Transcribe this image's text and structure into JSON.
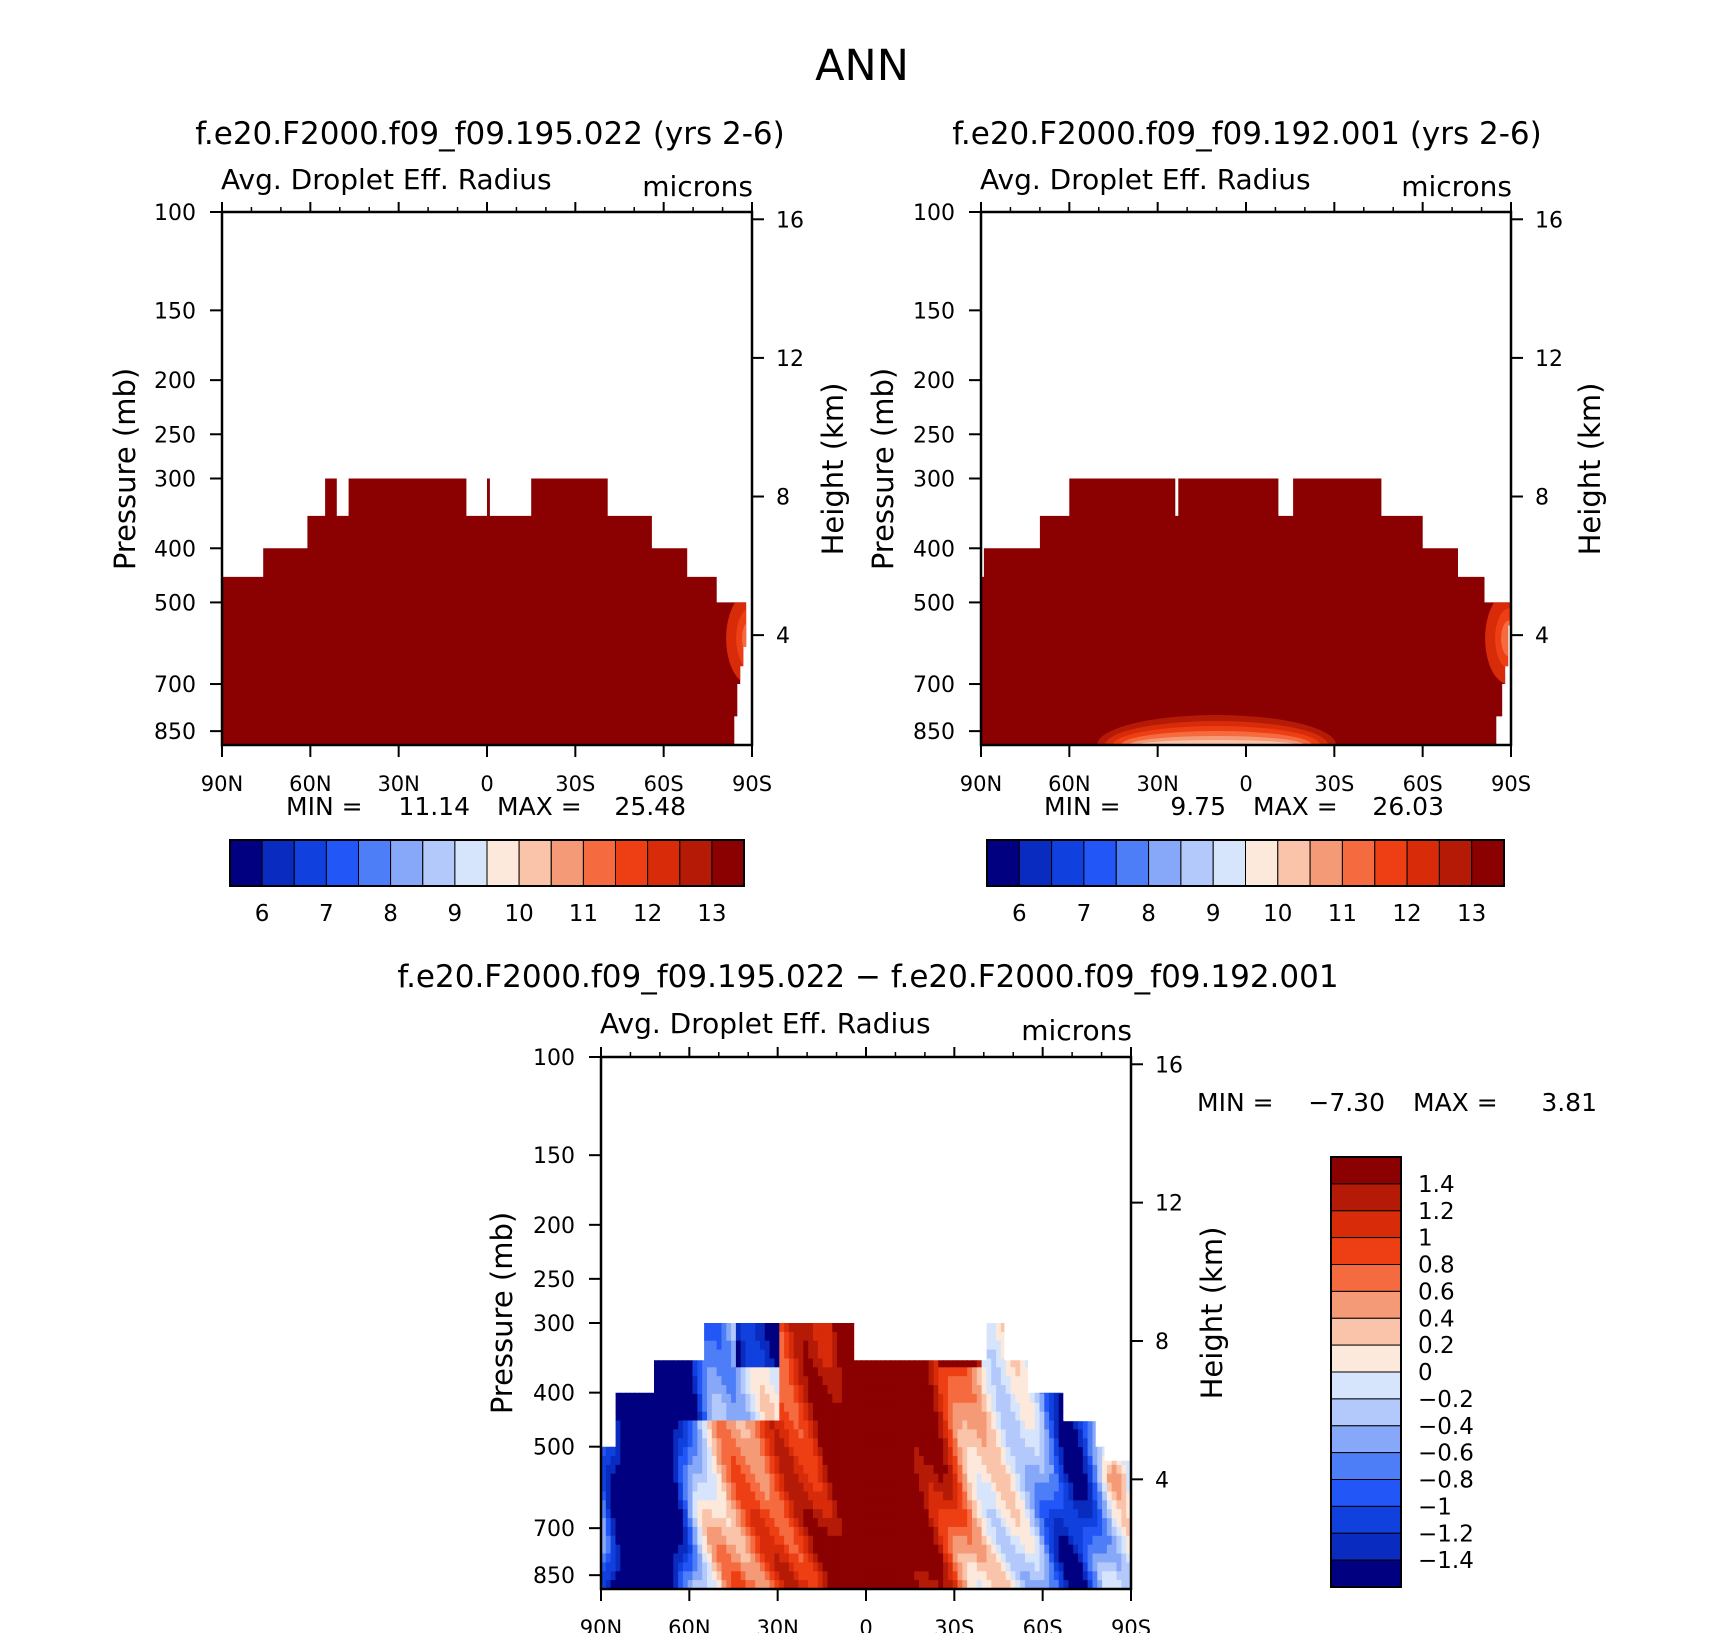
{
  "title": "ANN",
  "colors": {
    "fill_levels": [
      "#000080",
      "#0a2bbf",
      "#1040dd",
      "#2356f6",
      "#4d7ef7",
      "#87a8f8",
      "#b4c9fb",
      "#d6e5fb",
      "#fde9dc",
      "#f9c4aa",
      "#f59a76",
      "#f56b3f",
      "#ee3f14",
      "#d82b0a",
      "#b51a06",
      "#8b0000"
    ],
    "no_data": "#ffffff"
  },
  "chart_data": [
    {
      "id": "panel-1",
      "type": "heatmap",
      "subtitle": "f.e20.F2000.f09_f09.195.022 (yrs 2-6)",
      "title": "Avg. Droplet Eff. Radius",
      "units": "microns",
      "ylabel": "Pressure (mb)",
      "ylabel_right": "Height (km)",
      "xlim": [
        90,
        -90
      ],
      "ylim": [
        100,
        900
      ],
      "x_ticks": [
        {
          "v": 90,
          "l": "90N"
        },
        {
          "v": 60,
          "l": "60N"
        },
        {
          "v": 30,
          "l": "30N"
        },
        {
          "v": 0,
          "l": "0"
        },
        {
          "v": -30,
          "l": "30S"
        },
        {
          "v": -60,
          "l": "60S"
        },
        {
          "v": -90,
          "l": "90S"
        }
      ],
      "y_ticks": [
        100,
        150,
        200,
        250,
        300,
        400,
        500,
        700,
        850
      ],
      "height_ticks": [
        4,
        8,
        12,
        16
      ],
      "min_label": "MIN =",
      "min_value": "11.14",
      "max_label": "MAX =",
      "max_value": "25.48",
      "colorbar": {
        "levels": [
          5.75,
          6,
          6.25,
          6.5,
          6.75,
          7,
          7.25,
          7.5,
          7.75,
          8,
          8.25,
          8.5,
          8.75,
          9,
          9.25,
          9.5,
          9.75,
          10,
          10.25,
          10.5,
          10.75,
          11,
          11.25,
          11.5,
          11.75,
          12,
          12.25,
          12.5,
          12.75,
          13,
          13.25,
          13.5,
          13.75
        ],
        "labels": [
          "6",
          "7",
          "8",
          "9",
          "10",
          "11",
          "12",
          "13"
        ],
        "orientation": "horizontal"
      },
      "top_profile": [
        [
          90,
          450
        ],
        [
          76,
          450
        ],
        [
          76,
          400
        ],
        [
          61,
          400
        ],
        [
          61,
          350
        ],
        [
          55,
          350
        ],
        [
          55,
          300
        ],
        [
          51,
          300
        ],
        [
          51,
          350
        ],
        [
          47,
          350
        ],
        [
          47,
          300
        ],
        [
          7,
          300
        ],
        [
          7,
          350
        ],
        [
          0,
          350
        ],
        [
          0,
          300
        ],
        [
          -1,
          300
        ],
        [
          -1,
          350
        ],
        [
          -15,
          350
        ],
        [
          -15,
          300
        ],
        [
          -41,
          300
        ],
        [
          -41,
          350
        ],
        [
          -56,
          350
        ],
        [
          -56,
          400
        ],
        [
          -68,
          400
        ],
        [
          -68,
          450
        ],
        [
          -78,
          450
        ],
        [
          -78,
          500
        ],
        [
          -88,
          500
        ],
        [
          -88,
          600
        ],
        [
          -87,
          600
        ],
        [
          -87,
          650
        ],
        [
          -86,
          650
        ],
        [
          -86,
          700
        ],
        [
          -85,
          700
        ],
        [
          -85,
          800
        ],
        [
          -84,
          800
        ],
        [
          -84,
          900
        ]
      ],
      "features": [
        {
          "lat": -88,
          "p": 580,
          "kind": "warm-spot-edge",
          "v": 12
        }
      ]
    },
    {
      "id": "panel-2",
      "type": "heatmap",
      "subtitle": "f.e20.F2000.f09_f09.192.001 (yrs 2-6)",
      "title": "Avg. Droplet Eff. Radius",
      "units": "microns",
      "ylabel": "Pressure (mb)",
      "ylabel_right": "Height (km)",
      "xlim": [
        90,
        -90
      ],
      "ylim": [
        100,
        900
      ],
      "x_ticks": [
        {
          "v": 90,
          "l": "90N"
        },
        {
          "v": 60,
          "l": "60N"
        },
        {
          "v": 30,
          "l": "30N"
        },
        {
          "v": 0,
          "l": "0"
        },
        {
          "v": -30,
          "l": "30S"
        },
        {
          "v": -60,
          "l": "60S"
        },
        {
          "v": -90,
          "l": "90S"
        }
      ],
      "y_ticks": [
        100,
        150,
        200,
        250,
        300,
        400,
        500,
        700,
        850
      ],
      "height_ticks": [
        4,
        8,
        12,
        16
      ],
      "min_label": "MIN =",
      "min_value": "9.75",
      "max_label": "MAX =",
      "max_value": "26.03",
      "colorbar": {
        "levels": [
          5.75,
          6,
          6.25,
          6.5,
          6.75,
          7,
          7.25,
          7.5,
          7.75,
          8,
          8.25,
          8.5,
          8.75,
          9,
          9.25,
          9.5,
          9.75,
          10,
          10.25,
          10.5,
          10.75,
          11,
          11.25,
          11.5,
          11.75,
          12,
          12.25,
          12.5,
          12.75,
          13,
          13.25,
          13.5,
          13.75
        ],
        "labels": [
          "6",
          "7",
          "8",
          "9",
          "10",
          "11",
          "12",
          "13"
        ],
        "orientation": "horizontal"
      },
      "top_profile": [
        [
          90,
          450
        ],
        [
          89,
          450
        ],
        [
          89,
          400
        ],
        [
          70,
          400
        ],
        [
          70,
          350
        ],
        [
          60,
          350
        ],
        [
          60,
          300
        ],
        [
          24,
          300
        ],
        [
          24,
          350
        ],
        [
          23,
          350
        ],
        [
          23,
          300
        ],
        [
          -11,
          300
        ],
        [
          -11,
          350
        ],
        [
          -16,
          350
        ],
        [
          -16,
          300
        ],
        [
          -46,
          300
        ],
        [
          -46,
          350
        ],
        [
          -60,
          350
        ],
        [
          -60,
          400
        ],
        [
          -72,
          400
        ],
        [
          -72,
          450
        ],
        [
          -81,
          450
        ],
        [
          -81,
          500
        ],
        [
          -90,
          500
        ],
        [
          -90,
          550
        ],
        [
          -89,
          550
        ],
        [
          -89,
          650
        ],
        [
          -88,
          650
        ],
        [
          -88,
          700
        ],
        [
          -87,
          700
        ],
        [
          -87,
          800
        ],
        [
          -85,
          800
        ],
        [
          -85,
          900
        ]
      ],
      "features": [
        {
          "lat": -88,
          "p": 580,
          "kind": "warm-spot-edge",
          "v": 12
        },
        {
          "lat": 10,
          "p": 880,
          "kind": "low-radius-band",
          "v": 11
        }
      ]
    },
    {
      "id": "panel-diff",
      "type": "heatmap",
      "subtitle": "f.e20.F2000.f09_f09.195.022 − f.e20.F2000.f09_f09.192.001",
      "title": "Avg. Droplet Eff. Radius",
      "units": "microns",
      "ylabel": "Pressure (mb)",
      "ylabel_right": "Height (km)",
      "xlim": [
        90,
        -90
      ],
      "ylim": [
        100,
        900
      ],
      "x_ticks": [
        {
          "v": 90,
          "l": "90N"
        },
        {
          "v": 60,
          "l": "60N"
        },
        {
          "v": 30,
          "l": "30N"
        },
        {
          "v": 0,
          "l": "0"
        },
        {
          "v": -30,
          "l": "30S"
        },
        {
          "v": -60,
          "l": "60S"
        },
        {
          "v": -90,
          "l": "90S"
        }
      ],
      "y_ticks": [
        100,
        150,
        200,
        250,
        300,
        400,
        500,
        700,
        850
      ],
      "height_ticks": [
        4,
        8,
        12,
        16
      ],
      "min_label": "MIN =",
      "min_value": "−7.30",
      "max_label": "MAX =",
      "max_value": "3.81",
      "colorbar": {
        "levels": [
          -1.6,
          -1.4,
          -1.2,
          -1,
          -0.8,
          -0.6,
          -0.4,
          -0.2,
          0,
          0.2,
          0.4,
          0.6,
          0.8,
          1,
          1.2,
          1.4,
          1.6
        ],
        "labels": [
          "1.4",
          "1.2",
          "1",
          "0.8",
          "0.6",
          "0.4",
          "0.2",
          "0",
          "−0.2",
          "−0.4",
          "−0.6",
          "−0.8",
          "−1",
          "−1.2",
          "−1.4"
        ],
        "orientation": "vertical"
      },
      "top_profile": [
        [
          90,
          500
        ],
        [
          85,
          500
        ],
        [
          85,
          400
        ],
        [
          72,
          400
        ],
        [
          72,
          350
        ],
        [
          55,
          350
        ],
        [
          55,
          300
        ],
        [
          4,
          300
        ],
        [
          4,
          350
        ],
        [
          -41,
          350
        ],
        [
          -41,
          300
        ],
        [
          -47,
          300
        ],
        [
          -47,
          350
        ],
        [
          -55,
          350
        ],
        [
          -55,
          400
        ],
        [
          -67,
          400
        ],
        [
          -67,
          450
        ],
        [
          -78,
          450
        ],
        [
          -78,
          500
        ],
        [
          -81,
          500
        ],
        [
          -81,
          530
        ],
        [
          -90,
          530
        ],
        [
          -90,
          900
        ]
      ],
      "features": [
        {
          "lat": 75,
          "p": 550,
          "kind": "negative-core",
          "v": -2
        },
        {
          "lat": 72,
          "p": 850,
          "kind": "negative-core",
          "v": -1.8
        },
        {
          "lat": -72,
          "p": 600,
          "kind": "negative-core",
          "v": -1.4
        },
        {
          "lat": -10,
          "p": 650,
          "kind": "positive-core",
          "v": 1.6
        },
        {
          "lat": 15,
          "p": 800,
          "kind": "positive-core",
          "v": 1.5
        },
        {
          "lat": -20,
          "p": 850,
          "kind": "positive-core",
          "v": 1.6
        }
      ]
    }
  ]
}
